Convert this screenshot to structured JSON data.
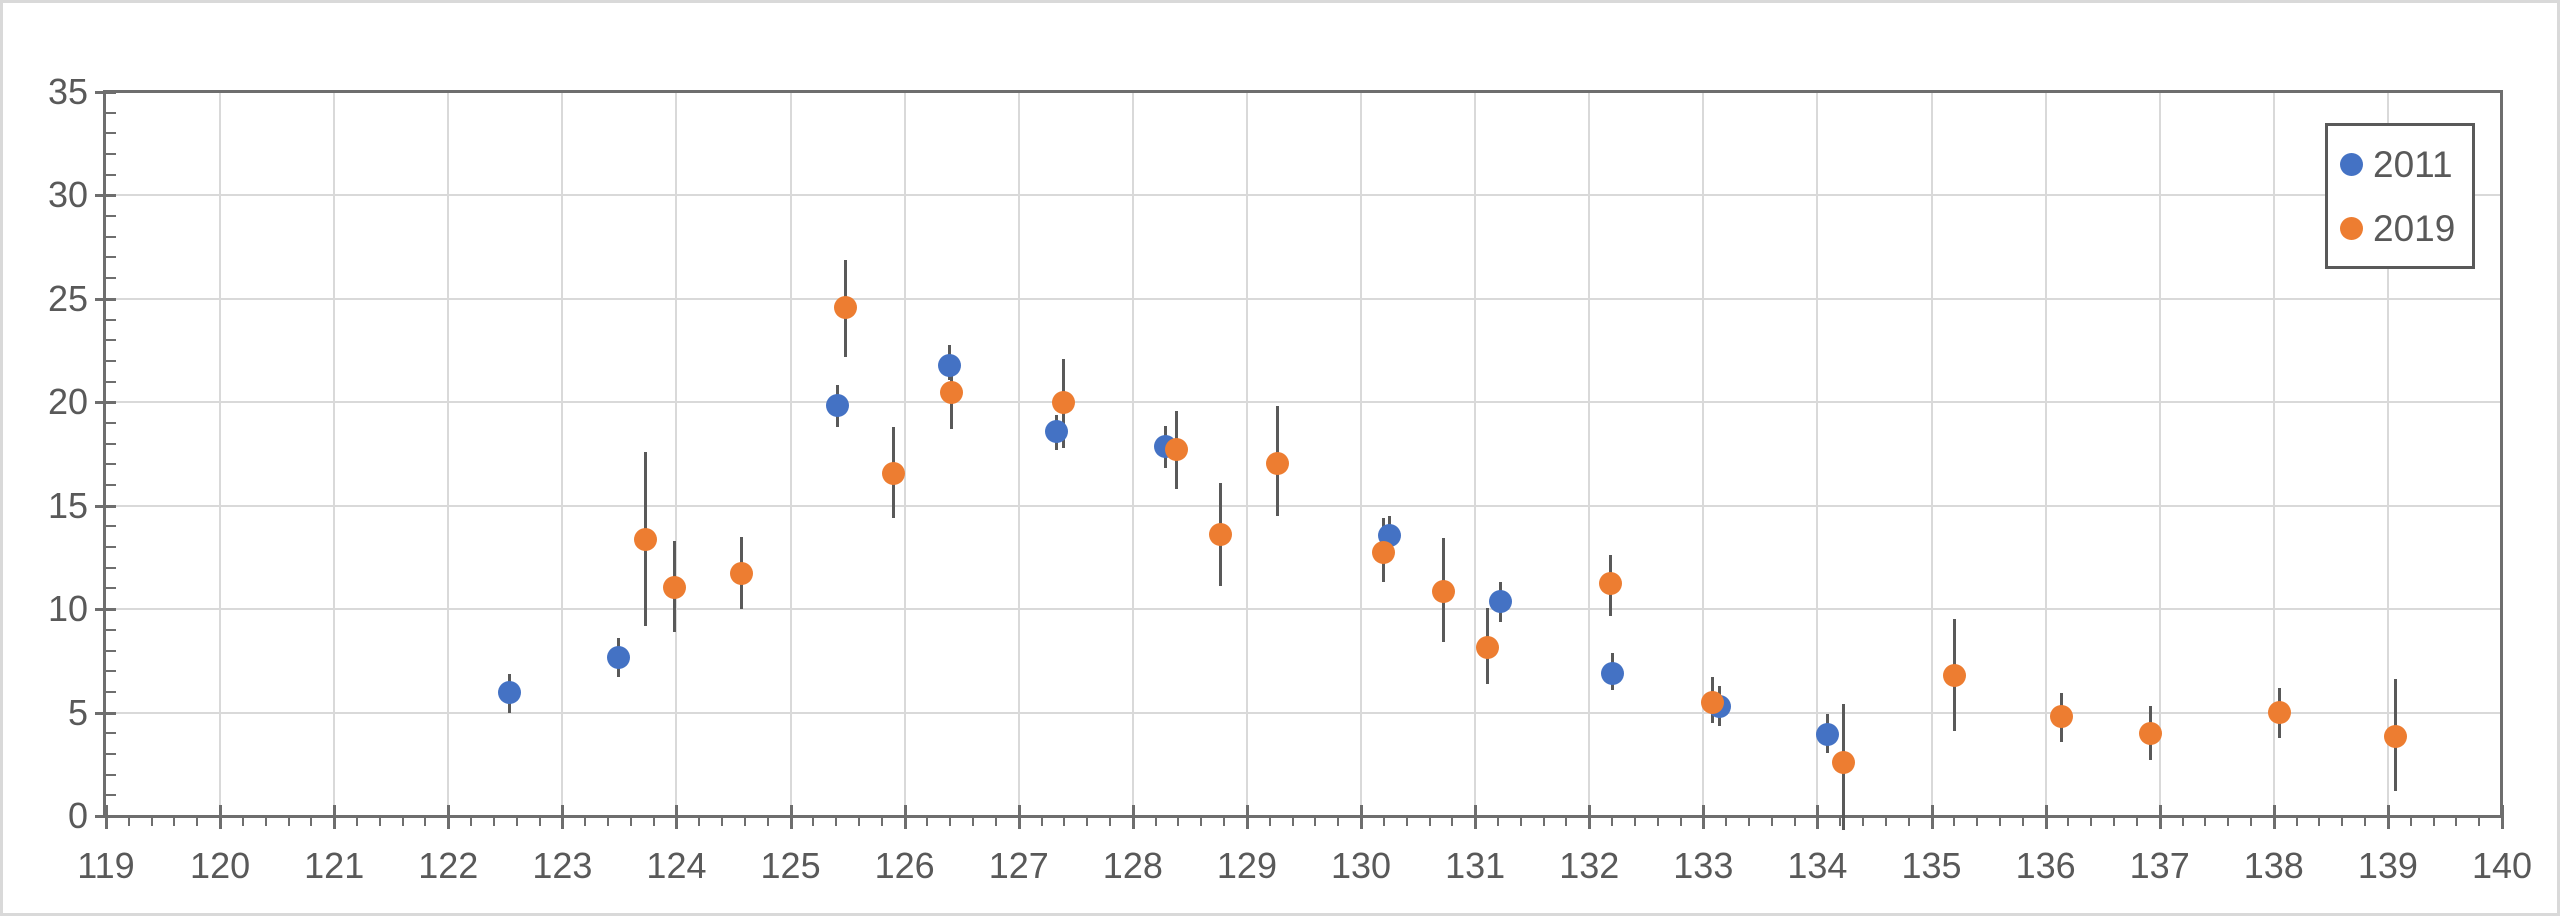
{
  "chart_data": {
    "type": "scatter",
    "title": "",
    "xlabel": "",
    "ylabel": "",
    "x_axis": {
      "min": 119,
      "max": 140,
      "major_step": 1,
      "minor_step": 0.2,
      "tick_labels": [
        "119",
        "120",
        "121",
        "122",
        "123",
        "124",
        "125",
        "126",
        "127",
        "128",
        "129",
        "130",
        "131",
        "132",
        "133",
        "134",
        "135",
        "136",
        "137",
        "138",
        "139",
        "140"
      ]
    },
    "y_axis": {
      "min": 0,
      "max": 35,
      "major_step": 5,
      "minor_step": 1,
      "tick_labels": [
        "0",
        "5",
        "10",
        "15",
        "20",
        "25",
        "30",
        "35"
      ]
    },
    "grid": true,
    "legend_position": "top-right",
    "error_bars": true,
    "error_bar_color": "#595959",
    "gridline_color": "#d9d9d9",
    "axis_color": "#6e6e6e",
    "label_color": "#595959",
    "series": [
      {
        "name": "2011",
        "color": "#4472C4",
        "marker": "circle",
        "points_format": [
          "x",
          "y",
          "err_low",
          "err_high"
        ],
        "points": [
          [
            122.54,
            5.95,
            5.0,
            6.85
          ],
          [
            123.49,
            7.65,
            6.7,
            8.6
          ],
          [
            125.41,
            19.85,
            18.8,
            20.85
          ],
          [
            126.39,
            21.8,
            21.1,
            22.75
          ],
          [
            127.33,
            18.6,
            17.7,
            19.4
          ],
          [
            128.29,
            17.85,
            16.8,
            18.85
          ],
          [
            130.25,
            13.55,
            12.6,
            14.5
          ],
          [
            131.22,
            10.35,
            9.4,
            11.3
          ],
          [
            132.2,
            6.9,
            6.1,
            7.9
          ],
          [
            133.14,
            5.3,
            4.35,
            6.3
          ],
          [
            134.09,
            3.95,
            3.05,
            4.95
          ]
        ]
      },
      {
        "name": "2019",
        "color": "#ED7D31",
        "marker": "circle",
        "points_format": [
          "x",
          "y",
          "err_low",
          "err_high"
        ],
        "points": [
          [
            123.73,
            13.35,
            9.2,
            17.6
          ],
          [
            123.98,
            11.05,
            8.9,
            13.3
          ],
          [
            124.57,
            11.7,
            10.0,
            13.5
          ],
          [
            125.48,
            24.6,
            22.2,
            26.9
          ],
          [
            125.9,
            16.55,
            14.4,
            18.8
          ],
          [
            126.41,
            20.45,
            18.7,
            21.35
          ],
          [
            127.39,
            20.0,
            17.8,
            22.1
          ],
          [
            128.38,
            17.7,
            15.8,
            19.6
          ],
          [
            128.77,
            13.6,
            11.1,
            16.1
          ],
          [
            129.27,
            17.05,
            14.5,
            19.8
          ],
          [
            130.2,
            12.75,
            11.3,
            14.4
          ],
          [
            130.72,
            10.85,
            8.4,
            13.45
          ],
          [
            131.11,
            8.15,
            6.4,
            10.05
          ],
          [
            132.19,
            11.25,
            9.65,
            12.6
          ],
          [
            133.08,
            5.5,
            4.5,
            6.7
          ],
          [
            134.23,
            2.6,
            -0.7,
            5.4
          ],
          [
            135.2,
            6.8,
            4.1,
            9.5
          ],
          [
            136.14,
            4.8,
            3.6,
            5.95
          ],
          [
            136.92,
            4.0,
            2.7,
            5.3
          ],
          [
            138.05,
            5.0,
            3.75,
            6.2
          ],
          [
            139.07,
            3.85,
            1.2,
            6.6
          ]
        ]
      }
    ]
  },
  "legend": {
    "items": [
      {
        "label": "2011",
        "color": "#4472C4"
      },
      {
        "label": "2019",
        "color": "#ED7D31"
      }
    ]
  }
}
